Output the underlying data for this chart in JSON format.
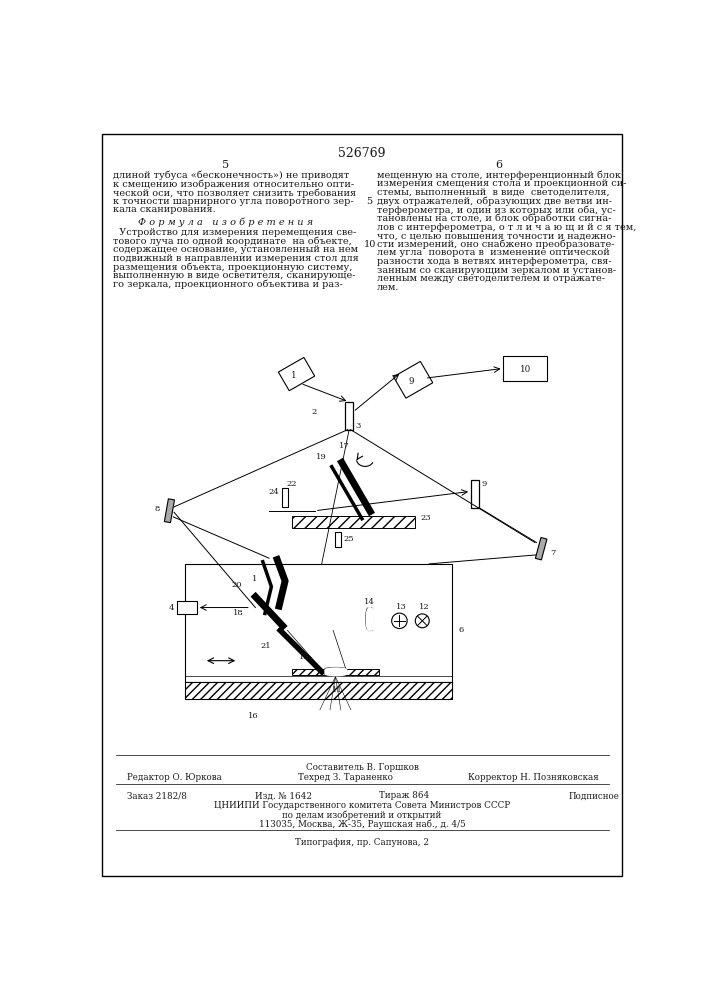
{
  "patent_number": "526769",
  "col_left": "5",
  "col_right": "6",
  "bg_color": "#ffffff",
  "text_color": "#1a1a1a",
  "bottom_sestavitel": "Составитель В. Горшков",
  "bottom_redaktor": "Редактор О. Юркова",
  "bottom_tehred": "Техред З. Тараненко",
  "bottom_korrektor": "Корректор Н. Позняковская",
  "bottom_zakaz": "Заказ 2182/8",
  "bottom_izd": "Изд. № 1642",
  "bottom_tirazh": "Тираж 864",
  "bottom_podpisnoe": "Подписное",
  "bottom_tsniipI": "ЦНИИПИ Государственного комитета Совета Министров СССР",
  "bottom_po_delam": "по делам изобретений и открытий",
  "bottom_address": "113035, Москва, Ж-35, Раушская наб., д. 4/5",
  "bottom_tipografia": "Типография, пр. Сапунова, 2"
}
